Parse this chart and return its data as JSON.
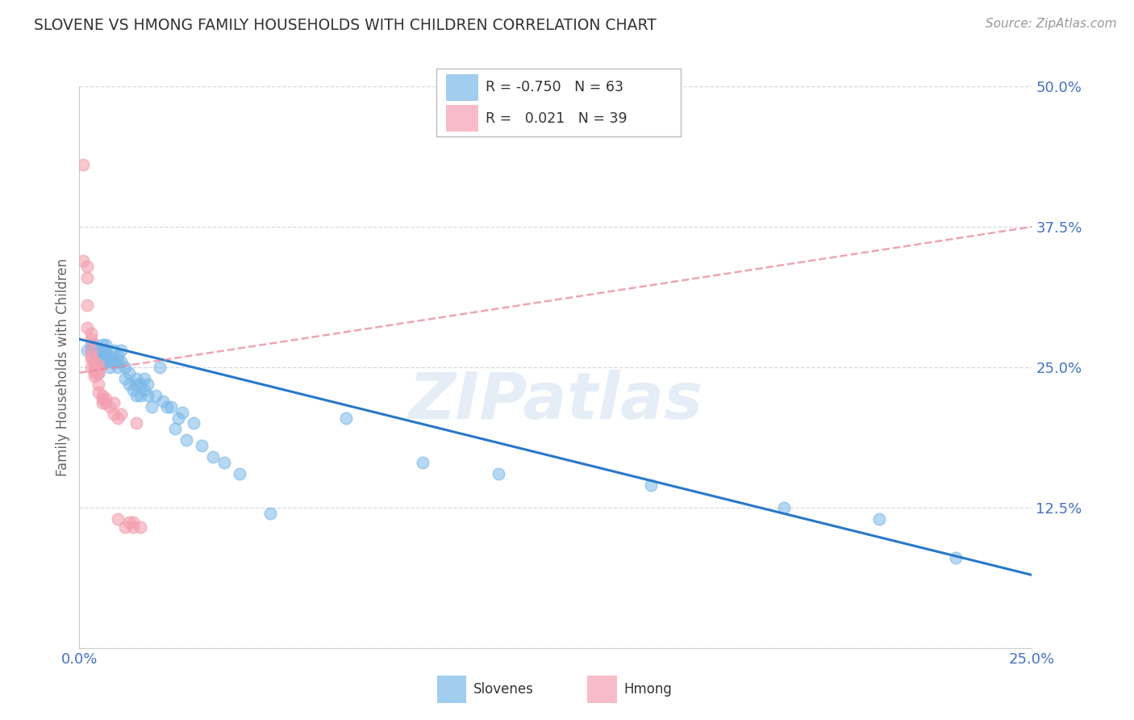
{
  "title": "SLOVENE VS HMONG FAMILY HOUSEHOLDS WITH CHILDREN CORRELATION CHART",
  "source": "Source: ZipAtlas.com",
  "ylabel": "Family Households with Children",
  "watermark": "ZIPatlas",
  "xlim": [
    0.0,
    0.25
  ],
  "ylim": [
    0.0,
    0.5
  ],
  "xticks": [
    0.0,
    0.05,
    0.1,
    0.15,
    0.2,
    0.25
  ],
  "yticks": [
    0.0,
    0.125,
    0.25,
    0.375,
    0.5
  ],
  "ytick_labels": [
    "",
    "12.5%",
    "25.0%",
    "37.5%",
    "50.0%"
  ],
  "xtick_labels": [
    "0.0%",
    "",
    "",
    "",
    "",
    "25.0%"
  ],
  "slovene_R": -0.75,
  "slovene_N": 63,
  "hmong_R": 0.021,
  "hmong_N": 39,
  "slovene_color": "#7ab8e8",
  "hmong_color": "#f4a0b0",
  "slovene_line_color": "#2878c8",
  "hmong_line_color": "#e88898",
  "grid_color": "#d8d8e0",
  "background_color": "#ffffff",
  "title_color": "#333333",
  "axis_label_color": "#666666",
  "tick_label_color": "#4472c4",
  "slovene_line_x0": 0.0,
  "slovene_line_y0": 0.275,
  "slovene_line_x1": 0.25,
  "slovene_line_y1": 0.065,
  "hmong_line_x0": 0.0,
  "hmong_line_y0": 0.245,
  "hmong_line_x1": 0.25,
  "hmong_line_y1": 0.375,
  "slovene_x": [
    0.002,
    0.003,
    0.003,
    0.004,
    0.004,
    0.005,
    0.005,
    0.005,
    0.006,
    0.006,
    0.006,
    0.006,
    0.007,
    0.007,
    0.007,
    0.007,
    0.008,
    0.008,
    0.008,
    0.009,
    0.009,
    0.01,
    0.01,
    0.01,
    0.011,
    0.011,
    0.012,
    0.012,
    0.013,
    0.013,
    0.014,
    0.015,
    0.015,
    0.015,
    0.016,
    0.016,
    0.017,
    0.017,
    0.018,
    0.018,
    0.019,
    0.02,
    0.021,
    0.022,
    0.023,
    0.024,
    0.025,
    0.026,
    0.027,
    0.028,
    0.03,
    0.032,
    0.035,
    0.038,
    0.042,
    0.05,
    0.07,
    0.09,
    0.11,
    0.15,
    0.185,
    0.21,
    0.23
  ],
  "slovene_y": [
    0.265,
    0.27,
    0.265,
    0.255,
    0.27,
    0.26,
    0.245,
    0.265,
    0.27,
    0.265,
    0.255,
    0.26,
    0.265,
    0.26,
    0.255,
    0.27,
    0.255,
    0.26,
    0.25,
    0.255,
    0.265,
    0.25,
    0.26,
    0.255,
    0.255,
    0.265,
    0.24,
    0.25,
    0.235,
    0.245,
    0.23,
    0.24,
    0.235,
    0.225,
    0.235,
    0.225,
    0.23,
    0.24,
    0.225,
    0.235,
    0.215,
    0.225,
    0.25,
    0.22,
    0.215,
    0.215,
    0.195,
    0.205,
    0.21,
    0.185,
    0.2,
    0.18,
    0.17,
    0.165,
    0.155,
    0.12,
    0.205,
    0.165,
    0.155,
    0.145,
    0.125,
    0.115,
    0.08
  ],
  "hmong_x": [
    0.001,
    0.001,
    0.002,
    0.002,
    0.002,
    0.002,
    0.003,
    0.003,
    0.003,
    0.003,
    0.003,
    0.003,
    0.004,
    0.004,
    0.004,
    0.004,
    0.004,
    0.005,
    0.005,
    0.005,
    0.005,
    0.005,
    0.006,
    0.006,
    0.006,
    0.007,
    0.007,
    0.008,
    0.009,
    0.009,
    0.01,
    0.01,
    0.011,
    0.012,
    0.013,
    0.014,
    0.014,
    0.015,
    0.016
  ],
  "hmong_y": [
    0.43,
    0.345,
    0.34,
    0.33,
    0.305,
    0.285,
    0.28,
    0.275,
    0.265,
    0.26,
    0.258,
    0.25,
    0.255,
    0.25,
    0.248,
    0.245,
    0.242,
    0.252,
    0.245,
    0.248,
    0.235,
    0.228,
    0.225,
    0.222,
    0.218,
    0.222,
    0.218,
    0.215,
    0.218,
    0.208,
    0.205,
    0.115,
    0.208,
    0.108,
    0.112,
    0.108,
    0.112,
    0.2,
    0.108
  ]
}
